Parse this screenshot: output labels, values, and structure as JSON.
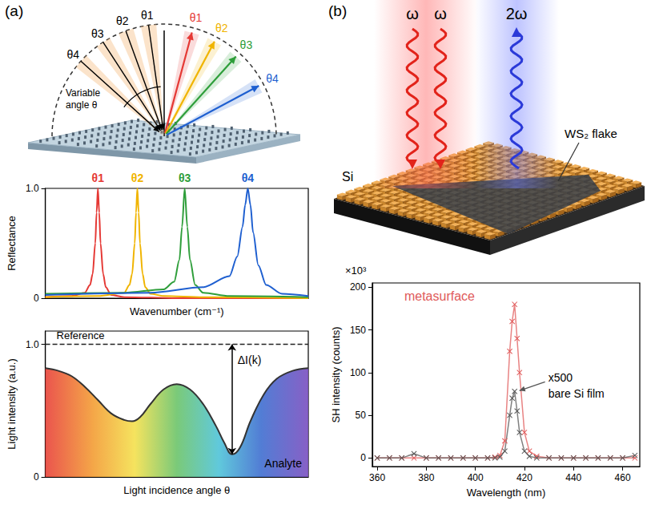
{
  "panels": [
    {
      "label": "(a)",
      "diagram": {
        "incident_labels": [
          "θ4",
          "θ3",
          "θ2",
          "θ1"
        ],
        "reflected": [
          {
            "label": "θ1",
            "color": "#e53935"
          },
          {
            "label": "θ2",
            "color": "#f0b400"
          },
          {
            "label": "θ3",
            "color": "#2e9e3a"
          },
          {
            "label": "θ4",
            "color": "#1e5fd0"
          }
        ],
        "caption": "Variable angle θ"
      }
    },
    {
      "label": "(b)",
      "diagram": {
        "input_labels": [
          "ω",
          "ω"
        ],
        "output_label": "2ω",
        "substrate_label": "Si",
        "flake_label": "WS₂ flake"
      }
    }
  ],
  "chart_data": [
    {
      "type": "line",
      "x_label": "Wavenumber (cm⁻¹)",
      "y_label": "Reflectance",
      "xlim": [
        0,
        100
      ],
      "ylim": [
        0,
        1
      ],
      "yticks": [
        0,
        {
          "value": 1,
          "label": "1.0"
        }
      ],
      "tick_labels": "y",
      "grid": false,
      "series": [
        {
          "name": "θ1",
          "color": "#e53935",
          "x": [
            0,
            10,
            15,
            17,
            18,
            19,
            19.5,
            20,
            20.5,
            21,
            22,
            23,
            25,
            30,
            50,
            100
          ],
          "values": [
            0.01,
            0.02,
            0.05,
            0.12,
            0.22,
            0.5,
            0.78,
            1.0,
            0.78,
            0.5,
            0.22,
            0.1,
            0.03,
            0.01,
            0,
            0
          ]
        },
        {
          "name": "θ2",
          "color": "#f0b400",
          "x": [
            0,
            20,
            30,
            32,
            33,
            34,
            34.5,
            35,
            35.5,
            36,
            37,
            38,
            40,
            45,
            60,
            100
          ],
          "values": [
            0.01,
            0.02,
            0.05,
            0.12,
            0.22,
            0.5,
            0.78,
            1.0,
            0.78,
            0.5,
            0.22,
            0.1,
            0.04,
            0.02,
            0.01,
            0
          ]
        },
        {
          "name": "θ3",
          "color": "#2e9e3a",
          "x": [
            0,
            30,
            45,
            49,
            51,
            52,
            53,
            54,
            55,
            57,
            60,
            70,
            100
          ],
          "values": [
            0.04,
            0.05,
            0.08,
            0.15,
            0.35,
            0.65,
            1.0,
            0.65,
            0.35,
            0.12,
            0.05,
            0.02,
            0.01
          ]
        },
        {
          "name": "θ4",
          "color": "#1e5fd0",
          "x": [
            0,
            40,
            60,
            70,
            73,
            75,
            76,
            77,
            78,
            79,
            81,
            84,
            90,
            100
          ],
          "values": [
            0.03,
            0.05,
            0.1,
            0.2,
            0.38,
            0.65,
            0.85,
            1.0,
            0.85,
            0.6,
            0.3,
            0.12,
            0.04,
            0.02
          ]
        }
      ]
    },
    {
      "type": "line",
      "x_label": "Light incidence angle θ",
      "y_label": "Light intensity (a.u.)",
      "xlim": [
        0,
        100
      ],
      "ylim": [
        0,
        1.1
      ],
      "yticks": [
        0,
        {
          "value": 1,
          "label": "1.0"
        }
      ],
      "tick_labels": "y",
      "grid": false,
      "series": [
        {
          "name": "Reference",
          "color": "#222222",
          "line_style": "dashed",
          "x": [
            0,
            100
          ],
          "values": [
            1,
            1
          ]
        },
        {
          "name": "Analyte",
          "color": "#333333",
          "x": [
            0,
            5,
            10,
            15,
            20,
            25,
            30,
            33,
            36,
            40,
            45,
            50,
            55,
            60,
            65,
            68,
            71,
            74,
            78,
            83,
            88,
            94,
            100
          ],
          "values": [
            0.82,
            0.8,
            0.76,
            0.68,
            0.58,
            0.48,
            0.43,
            0.42,
            0.45,
            0.55,
            0.66,
            0.7,
            0.66,
            0.55,
            0.38,
            0.26,
            0.17,
            0.22,
            0.42,
            0.62,
            0.74,
            0.8,
            0.82
          ]
        }
      ],
      "annotations": [
        {
          "text": "ΔI(k)"
        }
      ]
    },
    {
      "type": "line",
      "x_label": "Wavelength (nm)",
      "y_label": "SH intensity (counts)",
      "xlim": [
        358,
        467
      ],
      "xticks": [
        360,
        380,
        400,
        420,
        440,
        460
      ],
      "ylim": [
        -10,
        205
      ],
      "yticks": [
        0,
        50,
        100,
        150,
        200
      ],
      "grid": false,
      "series": [
        {
          "name": "metasurface",
          "color": "#e05a5a",
          "marker": "x",
          "x": [
            360,
            365,
            370,
            375,
            380,
            385,
            390,
            395,
            400,
            405,
            408,
            410,
            412,
            414,
            415,
            416,
            417,
            418,
            420,
            422,
            425,
            430,
            435,
            440,
            445,
            450,
            455,
            460,
            465
          ],
          "values": [
            0,
            0,
            0,
            0,
            0,
            0,
            0,
            0,
            0,
            0,
            1,
            3,
            20,
            125,
            160,
            180,
            140,
            100,
            30,
            8,
            2,
            0,
            0,
            0,
            0,
            0,
            0,
            0,
            0
          ]
        },
        {
          "name": "bare Si film",
          "color": "#555555",
          "marker": "x",
          "x": [
            360,
            365,
            370,
            375,
            380,
            385,
            390,
            395,
            400,
            405,
            408,
            410,
            412,
            414,
            415,
            416,
            417,
            418,
            420,
            422,
            425,
            430,
            435,
            440,
            445,
            450,
            455,
            460,
            465
          ],
          "values": [
            0,
            0,
            0,
            5,
            0,
            0,
            0,
            0,
            0,
            0,
            0,
            1,
            8,
            50,
            70,
            78,
            55,
            30,
            8,
            2,
            0,
            0,
            0,
            0,
            0,
            0,
            0,
            0,
            3
          ]
        }
      ],
      "annotations": [
        {
          "text": "×10³"
        },
        {
          "text": "x500"
        }
      ]
    }
  ]
}
